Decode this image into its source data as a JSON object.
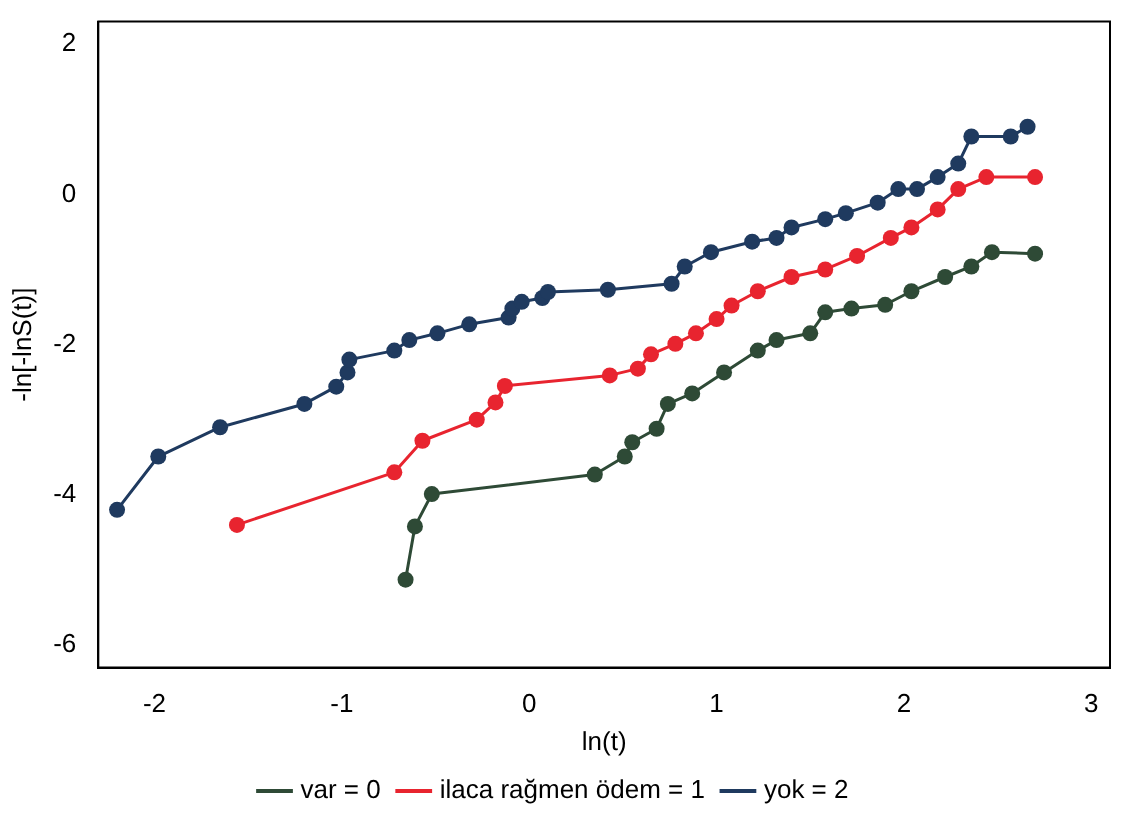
{
  "chart_data": {
    "type": "line",
    "xlabel": "ln(t)",
    "ylabel": "-ln[-lnS(t)]",
    "xlim": [
      -2.3,
      3.1
    ],
    "xticks": [
      -2,
      -1,
      0,
      1,
      2,
      3
    ],
    "ylim": [
      -6.3,
      2.3
    ],
    "yticks": [
      -6,
      -4,
      -2,
      0,
      2
    ],
    "grid": false,
    "legend": "bottom",
    "marker": "circle",
    "line_style": "solid",
    "series": [
      {
        "name": "var = 0",
        "color": "#2e4a36",
        "x": [
          -0.66,
          -0.61,
          -0.52,
          0.35,
          0.51,
          0.55,
          0.68,
          0.74,
          0.87,
          1.04,
          1.22,
          1.32,
          1.5,
          1.58,
          1.72,
          1.9,
          2.04,
          2.22,
          2.36,
          2.47,
          2.7
        ],
        "values": [
          -5.13,
          -4.42,
          -3.99,
          -3.73,
          -3.49,
          -3.3,
          -3.12,
          -2.79,
          -2.65,
          -2.37,
          -2.08,
          -1.94,
          -1.85,
          -1.57,
          -1.52,
          -1.47,
          -1.29,
          -1.1,
          -0.96,
          -0.77,
          -0.79
        ]
      },
      {
        "name": "ilaca rağmen ödem = 1",
        "color": "#e8242f",
        "x": [
          -1.56,
          -0.72,
          -0.57,
          -0.28,
          -0.18,
          -0.13,
          0.43,
          0.58,
          0.65,
          0.78,
          0.89,
          1.0,
          1.08,
          1.22,
          1.4,
          1.58,
          1.75,
          1.93,
          2.04,
          2.18,
          2.29,
          2.44,
          2.7
        ],
        "values": [
          -4.4,
          -3.7,
          -3.28,
          -3.0,
          -2.77,
          -2.55,
          -2.41,
          -2.32,
          -2.13,
          -1.99,
          -1.85,
          -1.66,
          -1.48,
          -1.29,
          -1.1,
          -1.0,
          -0.82,
          -0.58,
          -0.44,
          -0.2,
          0.07,
          0.23,
          0.23
        ]
      },
      {
        "name": "yok = 2",
        "color": "#1f3a5f",
        "x": [
          -2.2,
          -1.98,
          -1.65,
          -1.2,
          -1.03,
          -0.97,
          -0.96,
          -0.72,
          -0.64,
          -0.49,
          -0.32,
          -0.11,
          -0.09,
          -0.04,
          0.07,
          0.1,
          0.42,
          0.76,
          0.83,
          0.97,
          1.19,
          1.32,
          1.4,
          1.58,
          1.69,
          1.86,
          1.97,
          2.07,
          2.18,
          2.29,
          2.36,
          2.57,
          2.66
        ],
        "values": [
          -4.2,
          -3.49,
          -3.1,
          -2.79,
          -2.56,
          -2.37,
          -2.2,
          -2.08,
          -1.94,
          -1.85,
          -1.73,
          -1.64,
          -1.52,
          -1.43,
          -1.38,
          -1.3,
          -1.27,
          -1.19,
          -0.96,
          -0.77,
          -0.63,
          -0.58,
          -0.44,
          -0.33,
          -0.25,
          -0.11,
          0.07,
          0.07,
          0.23,
          0.41,
          0.77,
          0.77,
          0.9
        ]
      }
    ]
  }
}
